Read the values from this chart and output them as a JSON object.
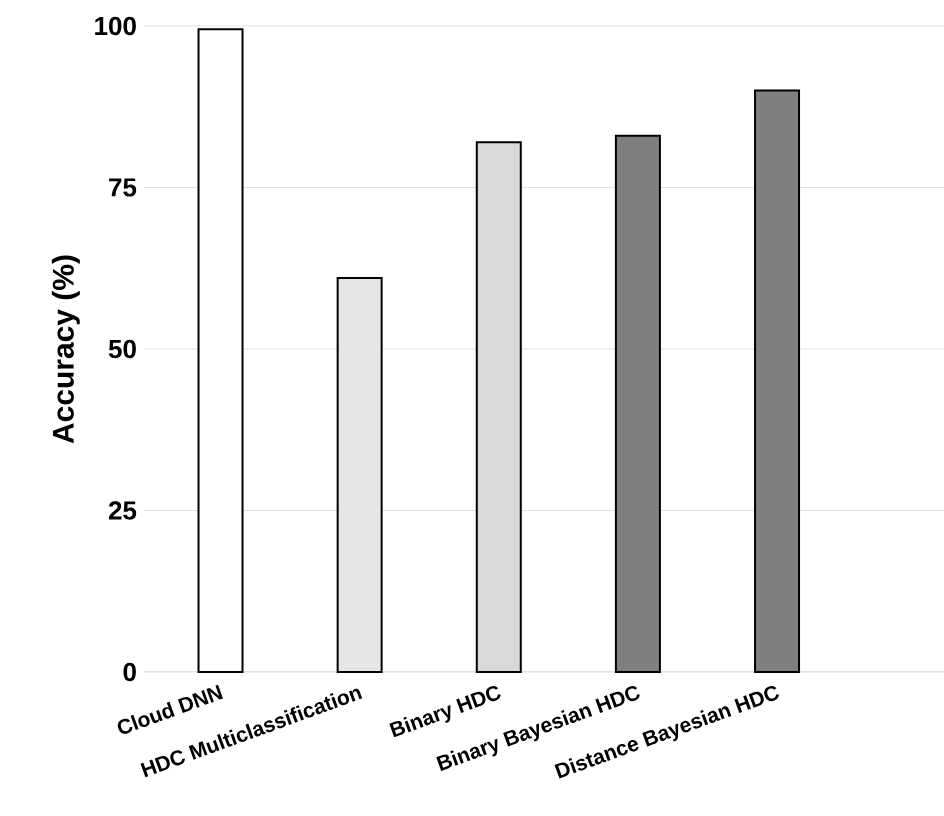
{
  "chart_data": {
    "type": "bar",
    "ylabel": "Accuracy (%)",
    "categories": [
      "Cloud DNN",
      "HDC Multiclassification",
      "Binary HDC",
      "Binary Bayesian HDC",
      "Distance Bayesian HDC"
    ],
    "values": [
      99.5,
      61,
      82,
      83,
      90
    ],
    "colors": [
      "#ffffff",
      "#e7e6e6",
      "#d9d9d9",
      "#7f7f7f",
      "#7f7f7f"
    ],
    "ylim": [
      0,
      100
    ],
    "yticks": [
      0,
      25,
      50,
      75,
      100
    ],
    "grid": "y"
  }
}
